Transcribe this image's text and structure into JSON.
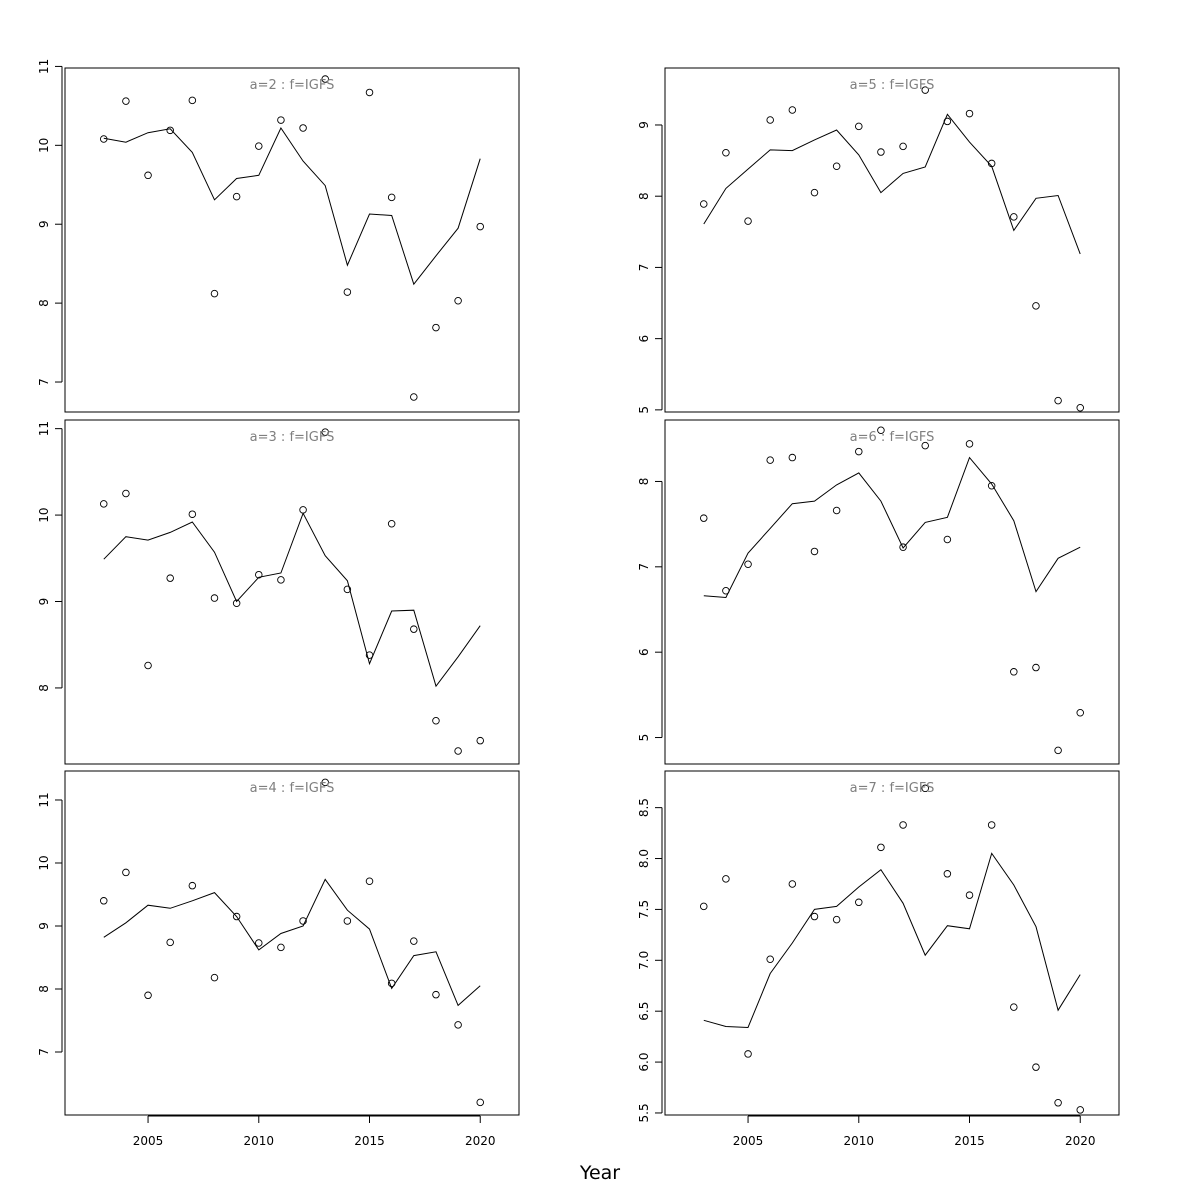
{
  "chart_data": [
    {
      "type": "line",
      "panel_label": "a=2 : f=IGFS",
      "x": [
        2003,
        2004,
        2005,
        2006,
        2007,
        2008,
        2009,
        2010,
        2011,
        2012,
        2013,
        2014,
        2015,
        2016,
        2017,
        2018,
        2019,
        2020
      ],
      "series": [
        {
          "type": "scatter",
          "values": [
            10.08,
            10.56,
            9.62,
            10.19,
            10.57,
            8.12,
            9.35,
            9.99,
            10.32,
            10.22,
            10.84,
            8.14,
            10.67,
            9.34,
            6.81,
            7.69,
            8.03,
            8.97
          ]
        },
        {
          "type": "line",
          "values": [
            10.09,
            10.04,
            10.16,
            10.21,
            9.91,
            9.31,
            9.58,
            9.62,
            10.22,
            9.8,
            9.49,
            8.48,
            9.13,
            9.11,
            8.24,
            8.6,
            8.95,
            9.83
          ]
        }
      ],
      "yticks": [
        7,
        8,
        9,
        10,
        11
      ],
      "ylim": [
        6.62,
        10.98
      ],
      "xticks": [
        2005,
        2010,
        2015,
        2020
      ],
      "xlim": [
        2001.25,
        2021.75
      ]
    },
    {
      "type": "line",
      "panel_label": "a=3 : f=IGFS",
      "x": [
        2003,
        2004,
        2005,
        2006,
        2007,
        2008,
        2009,
        2010,
        2011,
        2012,
        2013,
        2014,
        2015,
        2016,
        2017,
        2018,
        2019,
        2020
      ],
      "series": [
        {
          "type": "scatter",
          "values": [
            10.13,
            10.25,
            8.26,
            9.27,
            10.01,
            9.04,
            8.98,
            9.31,
            9.25,
            10.06,
            10.96,
            9.14,
            8.38,
            9.9,
            8.68,
            7.62,
            7.27,
            7.39
          ]
        },
        {
          "type": "line",
          "values": [
            9.49,
            9.75,
            9.71,
            9.8,
            9.92,
            9.57,
            9.0,
            9.28,
            9.33,
            10.02,
            9.53,
            9.24,
            8.28,
            8.89,
            8.9,
            8.02,
            8.36,
            8.72
          ]
        }
      ],
      "yticks": [
        8,
        9,
        10,
        11
      ],
      "ylim": [
        7.12,
        11.1
      ],
      "xticks": [
        2005,
        2010,
        2015,
        2020
      ],
      "xlim": [
        2001.25,
        2021.75
      ]
    },
    {
      "type": "line",
      "panel_label": "a=4 : f=IGFS",
      "x": [
        2003,
        2004,
        2005,
        2006,
        2007,
        2008,
        2009,
        2010,
        2011,
        2012,
        2013,
        2014,
        2015,
        2016,
        2017,
        2018,
        2019,
        2020
      ],
      "series": [
        {
          "type": "scatter",
          "values": [
            9.4,
            9.85,
            7.9,
            8.74,
            9.64,
            8.18,
            9.15,
            8.73,
            8.66,
            9.08,
            11.28,
            9.08,
            9.71,
            8.09,
            8.76,
            7.91,
            7.43,
            6.2
          ]
        },
        {
          "type": "line",
          "values": [
            8.82,
            9.05,
            9.33,
            9.28,
            9.4,
            9.53,
            9.15,
            8.62,
            8.88,
            9.0,
            9.74,
            9.25,
            8.95,
            8.01,
            8.53,
            8.59,
            7.74,
            8.05
          ]
        }
      ],
      "yticks": [
        7,
        8,
        9,
        10,
        11
      ],
      "ylim": [
        6.0,
        11.46
      ],
      "xticks": [
        2005,
        2010,
        2015,
        2020
      ],
      "xlim": [
        2001.25,
        2021.75
      ]
    },
    {
      "type": "line",
      "panel_label": "a=5 : f=IGFS",
      "x": [
        2003,
        2004,
        2005,
        2006,
        2007,
        2008,
        2009,
        2010,
        2011,
        2012,
        2013,
        2014,
        2015,
        2016,
        2017,
        2018,
        2019,
        2020
      ],
      "series": [
        {
          "type": "scatter",
          "values": [
            7.89,
            8.61,
            7.65,
            9.07,
            9.21,
            8.05,
            8.42,
            8.98,
            8.62,
            8.7,
            9.49,
            9.05,
            9.16,
            8.46,
            7.71,
            6.46,
            5.13,
            5.03
          ]
        },
        {
          "type": "line",
          "values": [
            7.61,
            8.11,
            8.38,
            8.65,
            8.64,
            8.79,
            8.93,
            8.58,
            8.05,
            8.32,
            8.41,
            9.15,
            8.76,
            8.42,
            7.52,
            7.97,
            8.01,
            7.19
          ]
        }
      ],
      "yticks": [
        5,
        6,
        7,
        8,
        9
      ],
      "ylim": [
        4.97,
        9.8
      ],
      "xticks": [
        2005,
        2010,
        2015,
        2020
      ],
      "xlim": [
        2001.25,
        2021.75
      ]
    },
    {
      "type": "line",
      "panel_label": "a=6 : f=IGFS",
      "x": [
        2003,
        2004,
        2005,
        2006,
        2007,
        2008,
        2009,
        2010,
        2011,
        2012,
        2013,
        2014,
        2015,
        2016,
        2017,
        2018,
        2019,
        2020
      ],
      "series": [
        {
          "type": "scatter",
          "values": [
            7.57,
            6.72,
            7.03,
            8.25,
            8.28,
            7.18,
            7.66,
            8.35,
            8.6,
            7.23,
            8.42,
            7.32,
            8.44,
            7.95,
            5.77,
            5.82,
            4.85,
            5.29
          ]
        },
        {
          "type": "line",
          "values": [
            6.66,
            6.64,
            7.16,
            7.45,
            7.74,
            7.77,
            7.96,
            8.1,
            7.77,
            7.22,
            7.52,
            7.58,
            8.28,
            7.97,
            7.54,
            6.71,
            7.1,
            7.23
          ]
        }
      ],
      "yticks": [
        5,
        6,
        7,
        8
      ],
      "ylim": [
        4.69,
        8.72
      ],
      "xticks": [
        2005,
        2010,
        2015,
        2020
      ],
      "xlim": [
        2001.25,
        2021.75
      ]
    },
    {
      "type": "line",
      "panel_label": "a=7 : f=IGFS",
      "x": [
        2003,
        2004,
        2005,
        2006,
        2007,
        2008,
        2009,
        2010,
        2011,
        2012,
        2013,
        2014,
        2015,
        2016,
        2017,
        2018,
        2019,
        2020
      ],
      "series": [
        {
          "type": "scatter",
          "values": [
            7.53,
            7.8,
            6.08,
            7.01,
            7.75,
            7.43,
            7.4,
            7.57,
            8.11,
            8.33,
            8.69,
            7.85,
            7.64,
            8.33,
            6.54,
            5.95,
            5.6,
            5.53
          ]
        },
        {
          "type": "line",
          "values": [
            6.41,
            6.35,
            6.34,
            6.87,
            7.17,
            7.5,
            7.53,
            7.72,
            7.89,
            7.56,
            7.05,
            7.34,
            7.31,
            8.05,
            7.74,
            7.33,
            6.51,
            6.86
          ]
        }
      ],
      "yticks": [
        5.5,
        6.0,
        6.5,
        7.0,
        7.5,
        8.0,
        8.5
      ],
      "ytick_labels": [
        "5.5",
        "6.0",
        "6.5",
        "7.0",
        "7.5",
        "8.0",
        "8.5"
      ],
      "ylim": [
        5.48,
        8.86
      ],
      "xticks": [
        2005,
        2010,
        2015,
        2020
      ],
      "xlim": [
        2001.25,
        2021.75
      ]
    }
  ],
  "xlabel": "Year"
}
